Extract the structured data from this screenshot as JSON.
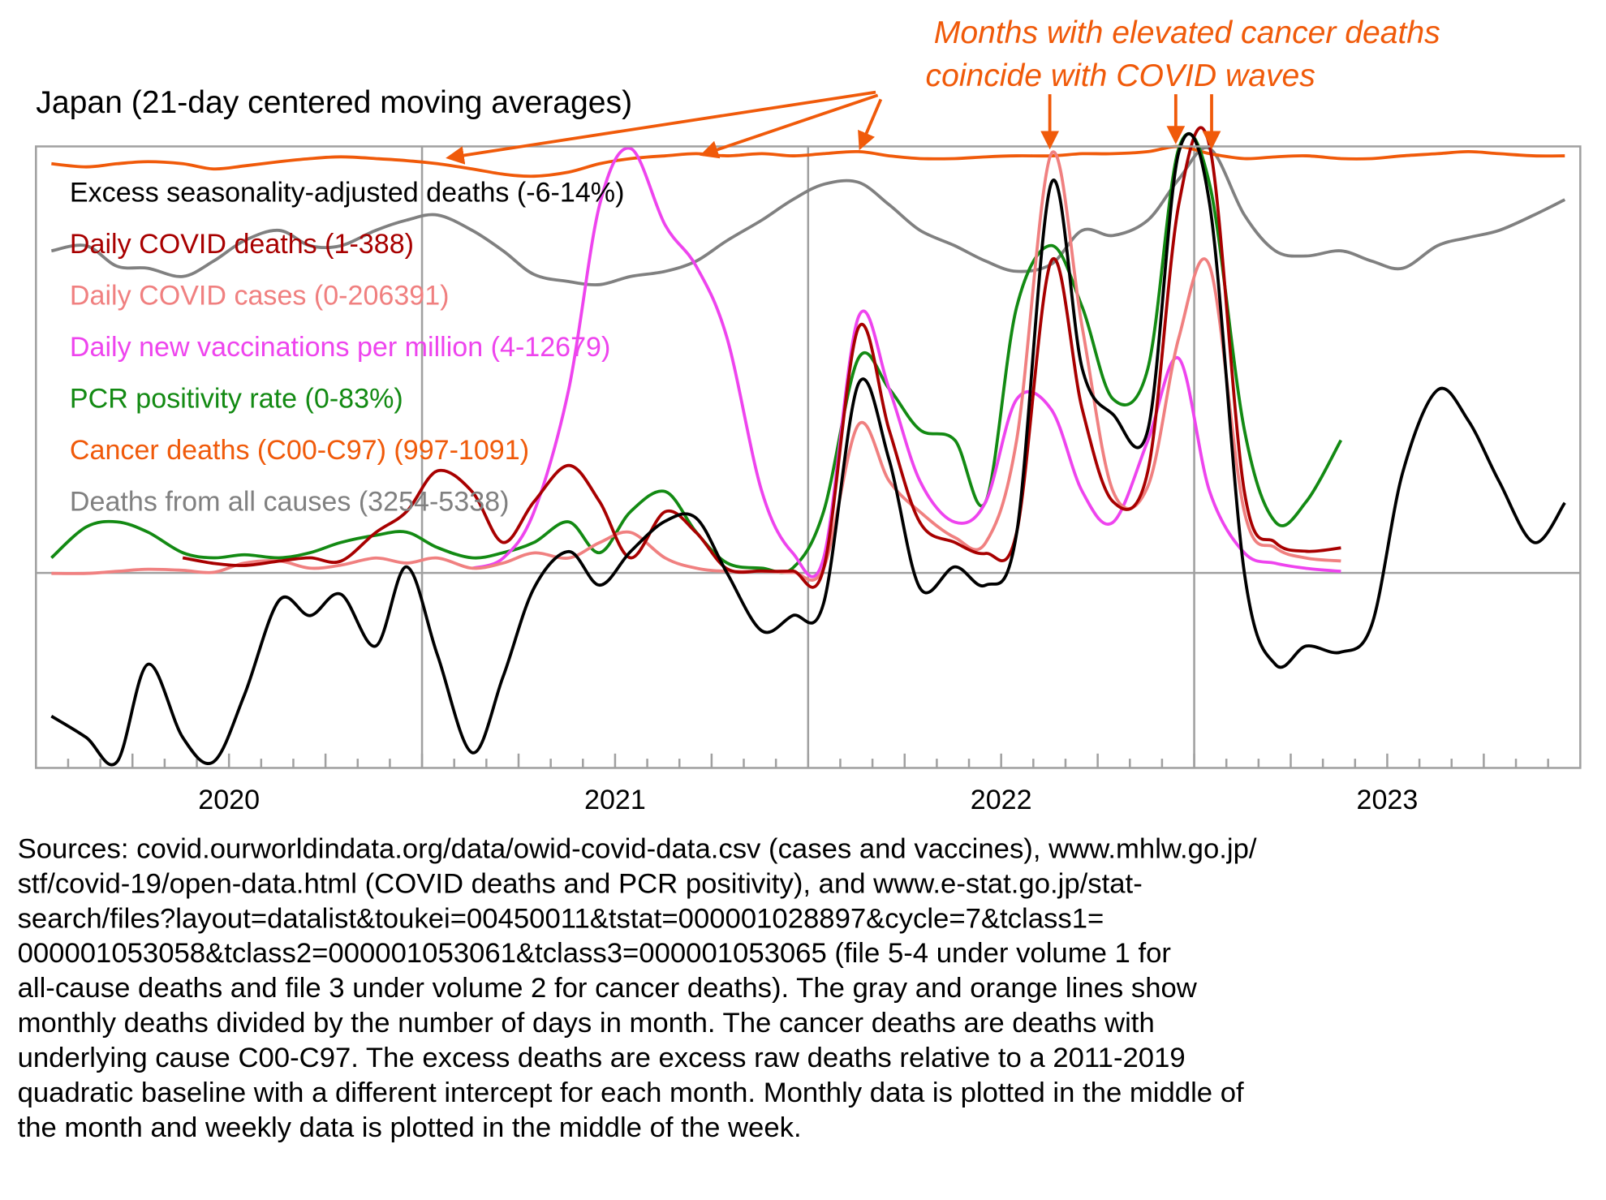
{
  "chart_data": {
    "type": "line",
    "title": "Japan (21-day centered moving averages)",
    "annotation": [
      "Months with elevated cancer deaths",
      "coincide with COVID waves"
    ],
    "xlim": [
      2020,
      2024
    ],
    "xticks": [
      {
        "value": 2020.5,
        "label": "2020"
      },
      {
        "value": 2021.5,
        "label": "2021"
      },
      {
        "value": 2022.5,
        "label": "2022"
      },
      {
        "value": 2023.5,
        "label": "2023"
      }
    ],
    "grid": true,
    "legend": "upper left",
    "x": [
      2020.04,
      2020.13,
      2020.21,
      2020.29,
      2020.38,
      2020.46,
      2020.54,
      2020.63,
      2020.71,
      2020.79,
      2020.88,
      2020.96,
      2021.04,
      2021.13,
      2021.21,
      2021.29,
      2021.38,
      2021.46,
      2021.54,
      2021.63,
      2021.71,
      2021.79,
      2021.88,
      2021.96,
      2022.04,
      2022.13,
      2022.21,
      2022.29,
      2022.38,
      2022.46,
      2022.54,
      2022.63,
      2022.71,
      2022.79,
      2022.88,
      2022.96,
      2023.04,
      2023.13,
      2023.21,
      2023.29,
      2023.38,
      2023.46,
      2023.54,
      2023.63,
      2023.71,
      2023.79,
      2023.88,
      2023.96
    ],
    "series": [
      {
        "name": "Excess seasonality-adjusted deaths (-6-14%)",
        "color": "#000000",
        "ylim": [
          -6.4,
          14
        ],
        "values": [
          -4.7,
          -5.4,
          -6.2,
          -3.0,
          -5.4,
          -6.2,
          -4.0,
          -0.9,
          -1.4,
          -0.7,
          -2.4,
          0.2,
          -2.7,
          -5.9,
          -3.4,
          -0.5,
          0.7,
          -0.4,
          0.7,
          1.7,
          1.8,
          0.0,
          -1.9,
          -1.4,
          -1.0,
          6.2,
          3.7,
          -0.5,
          0.2,
          -0.4,
          1.3,
          12.8,
          6.7,
          5.2,
          4.7,
          13.8,
          12.1,
          0.0,
          -3.0,
          -2.4,
          -2.6,
          -1.7,
          3.3,
          6.0,
          5.0,
          3.0,
          1.0,
          2.3
        ]
      },
      {
        "name": "Daily COVID deaths (1-388)",
        "color": "#a80000",
        "ylim": [
          -177,
          388
        ],
        "values": [
          null,
          null,
          null,
          null,
          14,
          9,
          7,
          11,
          14,
          11,
          37,
          56,
          93,
          74,
          28,
          65,
          98,
          65,
          14,
          56,
          37,
          4,
          2,
          2,
          4,
          223,
          130,
          46,
          28,
          18,
          37,
          284,
          149,
          65,
          93,
          335,
          388,
          74,
          28,
          20,
          23,
          null,
          null,
          null,
          null,
          null,
          null,
          null
        ]
      },
      {
        "name": "Daily COVID cases (0-206391)",
        "color": "#f08080",
        "ylim": [
          -94040,
          206391
        ],
        "values": [
          0,
          0,
          1000,
          2000,
          1500,
          500,
          5000,
          6000,
          2500,
          4000,
          7400,
          5000,
          7400,
          2500,
          5000,
          9900,
          7400,
          14900,
          19800,
          7400,
          2500,
          1000,
          1000,
          500,
          2500,
          71800,
          44600,
          29700,
          17300,
          14900,
          64400,
          202900,
          118800,
          39600,
          42100,
          113800,
          148500,
          29700,
          12400,
          7400,
          6000,
          null,
          null,
          null,
          null,
          null,
          null,
          null
        ]
      },
      {
        "name": "Daily new vaccinations per million (4-12679)",
        "color": "#ee44ee",
        "ylim": [
          -5777,
          12679
        ],
        "values": [
          null,
          null,
          null,
          null,
          null,
          null,
          null,
          null,
          null,
          null,
          null,
          null,
          null,
          150,
          454,
          1823,
          5472,
          10946,
          12618,
          10337,
          9121,
          6992,
          2431,
          607,
          454,
          7601,
          5472,
          2736,
          1520,
          2128,
          5168,
          4864,
          2431,
          1520,
          3951,
          6384,
          2431,
          607,
          302,
          150,
          60,
          null,
          null,
          null,
          null,
          null,
          null,
          null
        ]
      },
      {
        "name": "PCR positivity rate (0-83%)",
        "color": "#138a13",
        "ylim": [
          -38,
          83
        ],
        "values": [
          2.9,
          8.9,
          9.9,
          7.9,
          3.9,
          2.9,
          3.5,
          2.9,
          3.9,
          5.9,
          7.3,
          7.9,
          4.9,
          2.9,
          3.9,
          5.9,
          9.9,
          3.9,
          11.9,
          15.8,
          7.9,
          1.9,
          0.9,
          0.9,
          11.9,
          41.7,
          35.8,
          27.8,
          25.8,
          13.8,
          51.7,
          63.7,
          51.7,
          33.8,
          39.8,
          82.6,
          75.6,
          27.8,
          9.9,
          13.8,
          25.8,
          null,
          null,
          null,
          null,
          null,
          null,
          null
        ]
      },
      {
        "name": "Cancer deaths (C00-C97) (997-1091)",
        "color": "#f05a0a",
        "ylim": [
          -700,
          1091
        ],
        "values": [
          1041,
          1032,
          1041,
          1047,
          1041,
          1026,
          1035,
          1047,
          1056,
          1061,
          1056,
          1050,
          1041,
          1026,
          1011,
          1005,
          1017,
          1041,
          1056,
          1064,
          1070,
          1064,
          1070,
          1064,
          1070,
          1076,
          1064,
          1056,
          1056,
          1061,
          1064,
          1064,
          1070,
          1070,
          1076,
          1091,
          1070,
          1056,
          1061,
          1064,
          1056,
          1056,
          1064,
          1070,
          1076,
          1070,
          1064,
          1064
        ]
      },
      {
        "name": "Deaths from all causes (3254-5338)",
        "color": "#808080",
        "ylim": [
          -3895,
          5338
        ],
        "values": [
          3787,
          3863,
          3558,
          3528,
          3406,
          3634,
          3939,
          4091,
          3863,
          3863,
          4091,
          4243,
          4319,
          4091,
          3787,
          3437,
          3330,
          3285,
          3406,
          3482,
          3634,
          3939,
          4243,
          4547,
          4775,
          4806,
          4471,
          4091,
          3863,
          3634,
          3482,
          3589,
          4091,
          4015,
          4243,
          4851,
          5308,
          4319,
          3787,
          3711,
          3787,
          3634,
          3528,
          3863,
          3984,
          4091,
          4319,
          4547
        ]
      }
    ]
  },
  "note": [
    "Sources: covid.ourworldindata.org/data/owid-covid-data.csv (cases and vaccines), www.mhlw.go.jp/",
    "stf/covid-19/open-data.html (COVID deaths and PCR positivity), and www.e-stat.go.jp/stat-",
    "search/files?layout=datalist&toukei=00450011&tstat=000001028897&cycle=7&tclass1=",
    "000001053058&tclass2=000001053061&tclass3=000001053065 (file 5-4 under volume 1 for",
    "all-cause deaths and file 3 under volume 2 for cancer deaths). The gray and orange lines show",
    "monthly deaths divided by the number of days in month. The cancer deaths are deaths with",
    "underlying cause C00-C97. The excess deaths are excess raw deaths relative to a 2011-2019",
    "quadratic baseline with a different intercept for each month. Monthly data is plotted in the middle of",
    "the month and weekly data is plotted in the middle of the week."
  ]
}
